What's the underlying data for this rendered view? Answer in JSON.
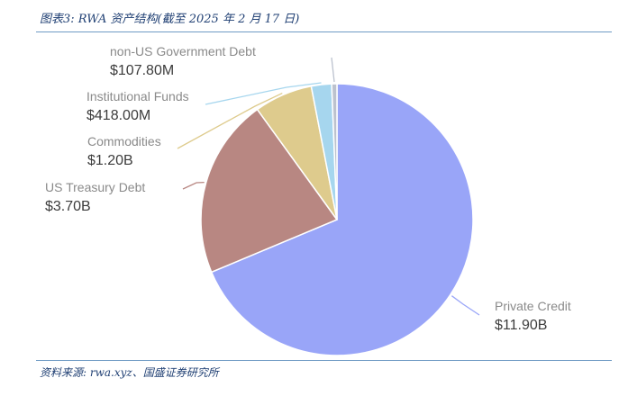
{
  "header": {
    "title": "图表3: RWA 资产结构(截至 2025 年 2 月 17 日)"
  },
  "footer": {
    "source": "资料来源: rwa.xyz、国盛证券研究所"
  },
  "chart_data": {
    "type": "pie",
    "title": "",
    "slices": [
      {
        "name": "Private Credit",
        "value_label": "$11.90B",
        "value": 11900,
        "color": "#99a5f8"
      },
      {
        "name": "US Treasury Debt",
        "value_label": "$3.70B",
        "value": 3700,
        "color": "#b88782"
      },
      {
        "name": "Commodities",
        "value_label": "$1.20B",
        "value": 1200,
        "color": "#decb8d"
      },
      {
        "name": "Institutional Funds",
        "value_label": "$418.00M",
        "value": 418,
        "color": "#a6d6ee"
      },
      {
        "name": "non-US Government Debt",
        "value_label": "$107.80M",
        "value": 107.8,
        "color": "#bcc2ce"
      }
    ]
  }
}
